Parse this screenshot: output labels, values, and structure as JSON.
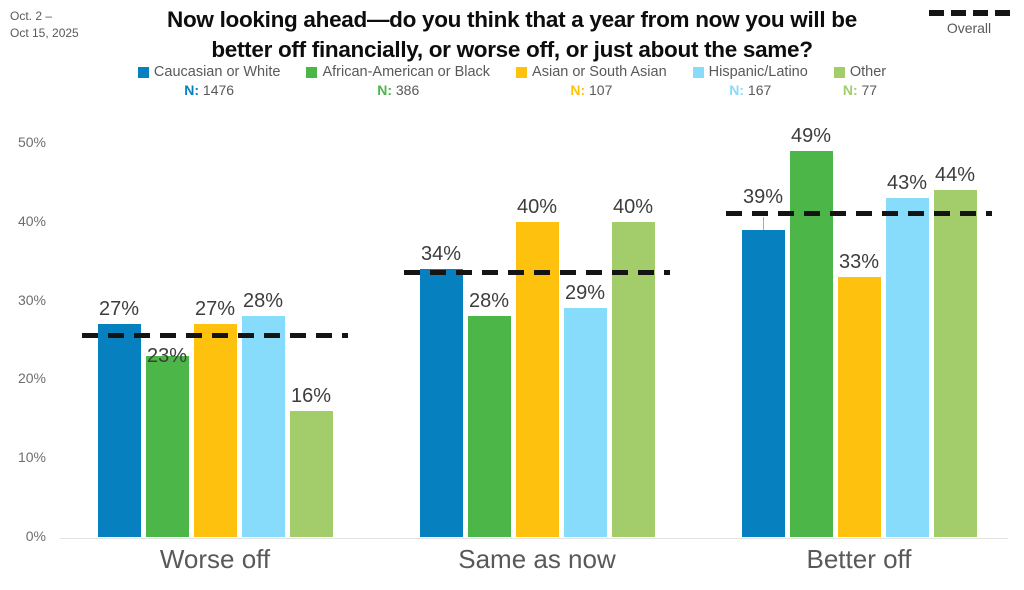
{
  "header": {
    "date_range": {
      "line1": "Oct. 2 –",
      "line2": "Oct 15, 2025"
    },
    "title": {
      "line1": "Now looking ahead—do you think that a year from now you will be",
      "line2": "better off financially, or worse off, or just about the same?"
    }
  },
  "chart_data": {
    "type": "bar",
    "title": "Now looking ahead—do you think that a year from now you will be better off financially, or worse off, or just about the same?",
    "date_range": "Oct. 2 – Oct 15, 2025",
    "categories": [
      "Worse off",
      "Same as now",
      "Better off"
    ],
    "series": [
      {
        "name": "Caucasian or White",
        "n": "1476",
        "color": "#0680bf",
        "values": [
          27,
          34,
          39
        ]
      },
      {
        "name": "African-American or Black",
        "n": "386",
        "color": "#4cb648",
        "values": [
          23,
          28,
          49
        ]
      },
      {
        "name": "Asian or South Asian",
        "n": "107",
        "color": "#fec10d",
        "values": [
          27,
          40,
          33
        ]
      },
      {
        "name": "Hispanic/Latino",
        "n": "167",
        "color": "#86dcfa",
        "values": [
          28,
          29,
          43
        ]
      },
      {
        "name": "Other",
        "n": "77",
        "color": "#a3cd6b",
        "values": [
          16,
          40,
          44
        ]
      }
    ],
    "overall_line": {
      "label": "Overall",
      "color": "#141414",
      "values": [
        25.5,
        33.5,
        41
      ]
    },
    "legend_n_prefix": "N:",
    "value_suffix": "%",
    "ylabel": "",
    "xlabel": "",
    "ylim": [
      0,
      50
    ],
    "yticks": [
      0,
      10,
      20,
      30,
      40,
      50
    ],
    "grid": false,
    "legend_position": "top"
  }
}
